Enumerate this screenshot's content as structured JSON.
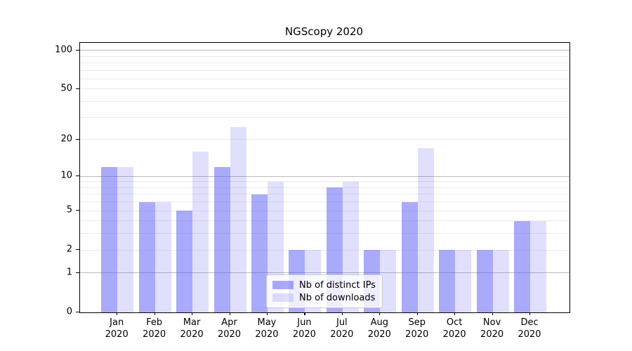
{
  "title": "NGScopy 2020",
  "legend": {
    "items": [
      {
        "label": "Nb of distinct IPs",
        "color": "rgba(85,85,245,0.5)"
      },
      {
        "label": "Nb of downloads",
        "color": "rgba(85,85,245,0.18)"
      }
    ],
    "position": "lower center"
  },
  "colors": {
    "bar_distinct_ips": "rgba(85,85,245,0.5)",
    "bar_downloads": "rgba(85,85,245,0.18)",
    "major_grid": "#bbbbbb",
    "minor_grid": "#eaeaea",
    "axis": "#000000"
  },
  "chart_data": {
    "type": "bar",
    "title": "NGScopy 2020",
    "categories": [
      "Jan",
      "Feb",
      "Mar",
      "Apr",
      "May",
      "Jun",
      "Jul",
      "Aug",
      "Sep",
      "Oct",
      "Nov",
      "Dec"
    ],
    "category_year": "2020",
    "series": [
      {
        "name": "Nb of distinct IPs",
        "values": [
          12,
          6,
          5,
          12,
          7,
          2,
          8,
          2,
          6,
          2,
          2,
          4
        ],
        "color": "rgba(85,85,245,0.5)"
      },
      {
        "name": "Nb of downloads",
        "values": [
          12,
          6,
          16,
          25,
          9,
          2,
          9,
          2,
          17,
          2,
          2,
          4
        ],
        "color": "rgba(85,85,245,0.18)"
      }
    ],
    "xlabel": "",
    "ylabel": "",
    "yscale": "log1p",
    "ylim": [
      0,
      115
    ],
    "ytick_labels": [
      "0",
      "1",
      "2",
      "5",
      "10",
      "20",
      "50",
      "100"
    ],
    "yticks": [
      0,
      1,
      2,
      5,
      10,
      20,
      50,
      100
    ],
    "major_gridlines": [
      1,
      10,
      100
    ],
    "minor_gridlines": [
      2,
      3,
      4,
      5,
      6,
      7,
      8,
      9,
      20,
      30,
      40,
      50,
      60,
      70,
      80,
      90
    ],
    "grid": true,
    "legend_position": "lower center"
  }
}
